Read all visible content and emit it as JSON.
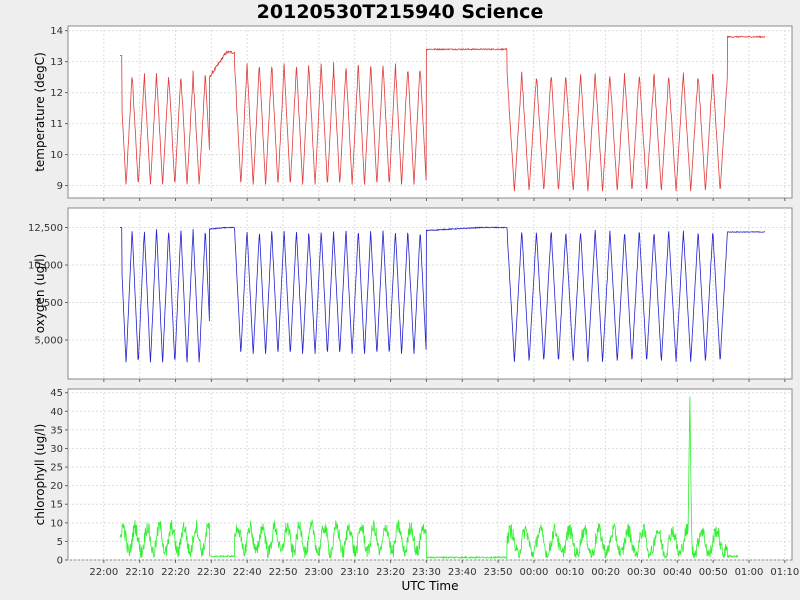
{
  "chart_data": {
    "title": "20120530T215940 Science",
    "xlabel": "UTC Time",
    "x_ticks": [
      "22:00",
      "22:10",
      "22:20",
      "22:30",
      "22:40",
      "22:50",
      "23:00",
      "23:10",
      "23:20",
      "23:30",
      "23:40",
      "23:50",
      "00:00",
      "00:10",
      "00:20",
      "00:30",
      "00:40",
      "00:50",
      "01:00",
      "01:10"
    ],
    "x_tick_minutes": [
      0,
      10,
      20,
      30,
      40,
      50,
      60,
      70,
      80,
      90,
      100,
      110,
      120,
      130,
      140,
      150,
      160,
      170,
      180,
      190
    ],
    "x_range_minutes": [
      -10,
      192
    ],
    "x_reference_label": "22:00",
    "background": "#ffffff",
    "grid": true,
    "panels": [
      {
        "name": "temperature",
        "type": "line",
        "ylabel": "temperature (degC)",
        "color": "#e03c3c",
        "ylim": [
          8.6,
          14.15
        ],
        "y_ticks": [
          9,
          10,
          11,
          12,
          13,
          14
        ],
        "y_tick_labels": [
          "9",
          "10",
          "11",
          "12",
          "13",
          "14"
        ],
        "segments": [
          {
            "type": "yo",
            "start": 4.5,
            "end": 29.5,
            "period": 3.4,
            "hi": 12.6,
            "lo": 9.0,
            "start_v": 13.2
          },
          {
            "type": "flat",
            "start": 29.5,
            "end": 36.5,
            "from": 12.5,
            "to": 13.3,
            "noise": 0.05
          },
          {
            "type": "yo",
            "start": 36.5,
            "end": 90.0,
            "period": 3.45,
            "hi": 12.9,
            "lo": 9.0
          },
          {
            "type": "flat",
            "start": 90.0,
            "end": 112.5,
            "from": 13.4,
            "to": 13.4,
            "noise": 0.02
          },
          {
            "type": "yo",
            "start": 112.5,
            "end": 174.0,
            "period": 4.1,
            "hi": 12.6,
            "lo": 8.8
          },
          {
            "type": "flat",
            "start": 174.0,
            "end": 184.5,
            "from": 13.8,
            "to": 13.8,
            "noise": 0.02
          }
        ]
      },
      {
        "name": "oxygen",
        "type": "line",
        "ylabel": "oxygen (ug/l)",
        "color": "#2222cc",
        "ylim": [
          2400,
          13800
        ],
        "y_ticks": [
          5000,
          7500,
          10000,
          12500
        ],
        "y_tick_labels": [
          "5,000",
          "7,500",
          "10,000",
          "12,500"
        ],
        "segments": [
          {
            "type": "yo",
            "start": 4.5,
            "end": 29.5,
            "period": 3.4,
            "hi": 12400,
            "lo": 3400,
            "start_v": 12500
          },
          {
            "type": "flat",
            "start": 29.5,
            "end": 36.5,
            "from": 12400,
            "to": 12500,
            "noise": 30
          },
          {
            "type": "yo",
            "start": 36.5,
            "end": 90.0,
            "period": 3.45,
            "hi": 12300,
            "lo": 4000
          },
          {
            "type": "flat",
            "start": 90.0,
            "end": 112.5,
            "from": 12300,
            "to": 12500,
            "noise": 30
          },
          {
            "type": "yo",
            "start": 112.5,
            "end": 174.0,
            "period": 4.1,
            "hi": 12300,
            "lo": 3500
          },
          {
            "type": "flat",
            "start": 174.0,
            "end": 184.5,
            "from": 12200,
            "to": 12200,
            "noise": 20
          }
        ]
      },
      {
        "name": "chlorophyll",
        "type": "line",
        "ylabel": "chlorophyll (ug/l)",
        "color": "#33ee33",
        "ylim": [
          0,
          46
        ],
        "y_ticks": [
          0,
          5,
          10,
          15,
          20,
          25,
          30,
          35,
          40,
          45
        ],
        "y_tick_labels": [
          "0",
          "5",
          "10",
          "15",
          "20",
          "25",
          "30",
          "35",
          "40",
          "45"
        ],
        "segments": [
          {
            "type": "noise",
            "start": 4.5,
            "end": 29.5,
            "period": 3.4,
            "hi": 9,
            "lo": 2
          },
          {
            "type": "flat",
            "start": 29.5,
            "end": 36.5,
            "from": 1,
            "to": 1,
            "noise": 0.2
          },
          {
            "type": "noise",
            "start": 36.5,
            "end": 90.0,
            "period": 3.45,
            "hi": 9,
            "lo": 2
          },
          {
            "type": "flat",
            "start": 90.0,
            "end": 112.5,
            "from": 0.7,
            "to": 0.7,
            "noise": 0.2
          },
          {
            "type": "noise",
            "start": 112.5,
            "end": 174.0,
            "period": 4.1,
            "hi": 8,
            "lo": 1.5,
            "spike_at": 163.5,
            "spike_v": 44
          },
          {
            "type": "flat",
            "start": 174.0,
            "end": 177.0,
            "from": 1,
            "to": 1,
            "noise": 0.3
          }
        ]
      }
    ]
  }
}
